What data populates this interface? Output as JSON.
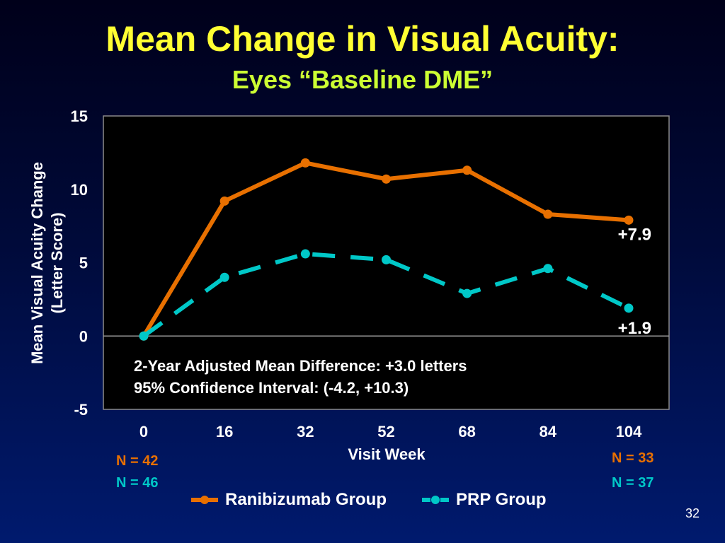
{
  "slide": {
    "title": "Mean Change in Visual Acuity:",
    "subtitle": "Eyes “Baseline DME”",
    "page_number": "32"
  },
  "chart_data": {
    "type": "line",
    "x": [
      0,
      16,
      32,
      52,
      68,
      84,
      104
    ],
    "xtick_labels": [
      "0",
      "16",
      "32",
      "52",
      "68",
      "84",
      "104"
    ],
    "xlabel": "Visit Week",
    "ylabel_lines": [
      "Mean Visual Acuity Change",
      "(Letter Score)"
    ],
    "ylim": [
      -5,
      15
    ],
    "yticks": [
      -5,
      0,
      5,
      10,
      15
    ],
    "series": [
      {
        "name": "Ranibizumab Group",
        "color": "#e87000",
        "dash": "solid",
        "values": [
          0,
          9.2,
          11.8,
          10.7,
          11.3,
          8.3,
          7.9
        ],
        "end_label": "+7.9"
      },
      {
        "name": "PRP Group",
        "color": "#00c8c8",
        "dash": "dashed",
        "values": [
          0,
          4.0,
          5.6,
          5.2,
          2.9,
          4.6,
          1.9
        ],
        "end_label": "+1.9"
      }
    ],
    "annotations": [
      "2-Year Adjusted Mean Difference: +3.0 letters",
      "95% Confidence Interval: (-4.2, +10.3)"
    ],
    "legend_position": "bottom"
  },
  "n_counts": {
    "ranibizumab_start": "N = 42",
    "prp_start": "N = 46",
    "ranibizumab_end": "N = 33",
    "prp_end": "N = 37"
  }
}
